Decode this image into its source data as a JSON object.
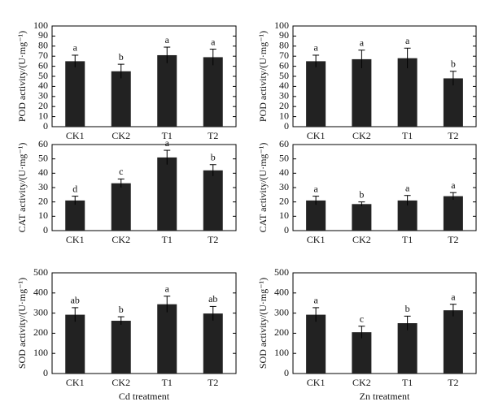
{
  "chart_data": [
    {
      "type": "bar",
      "ylabel": "POD activity/(U·mg⁻¹)",
      "categories": [
        "CK1",
        "CK2",
        "T1",
        "T2"
      ],
      "values": [
        65,
        55,
        71,
        69
      ],
      "errors": [
        6,
        7,
        8,
        8
      ],
      "labels": [
        "a",
        "b",
        "a",
        "a"
      ],
      "color": "#222222",
      "ylim": [
        0,
        100
      ],
      "yticks": [
        0,
        10,
        20,
        30,
        40,
        50,
        60,
        70,
        80,
        90,
        100
      ]
    },
    {
      "type": "bar",
      "ylabel": "POD activity/(U·mg⁻¹)",
      "categories": [
        "CK1",
        "CK2",
        "T1",
        "T2"
      ],
      "values": [
        65,
        67,
        68,
        48
      ],
      "errors": [
        6,
        9,
        10,
        7
      ],
      "labels": [
        "a",
        "a",
        "a",
        "b"
      ],
      "color": "#222222",
      "ylim": [
        0,
        100
      ],
      "yticks": [
        0,
        10,
        20,
        30,
        40,
        50,
        60,
        70,
        80,
        90,
        100
      ]
    },
    {
      "type": "bar",
      "ylabel": "CAT activity/(U·mg⁻¹)",
      "categories": [
        "CK1",
        "CK2",
        "T1",
        "T2"
      ],
      "values": [
        21,
        33,
        51,
        42
      ],
      "errors": [
        3,
        3,
        5,
        4
      ],
      "labels": [
        "d",
        "c",
        "a",
        "b"
      ],
      "color": "#222222",
      "ylim": [
        0,
        60
      ],
      "yticks": [
        0,
        10,
        20,
        30,
        40,
        50,
        60
      ]
    },
    {
      "type": "bar",
      "ylabel": "CAT activity/(U·mg⁻¹)",
      "categories": [
        "CK1",
        "CK2",
        "T1",
        "T2"
      ],
      "values": [
        21,
        18.5,
        21,
        24
      ],
      "errors": [
        3,
        1.5,
        3.5,
        2.5
      ],
      "labels": [
        "a",
        "b",
        "a",
        "a"
      ],
      "color": "#222222",
      "ylim": [
        0,
        60
      ],
      "yticks": [
        0,
        10,
        20,
        30,
        40,
        50,
        60
      ]
    },
    {
      "type": "bar",
      "ylabel": "SOD activity/(U·mg⁻¹)",
      "xlabel": "Cd treatment",
      "categories": [
        "CK1",
        "CK2",
        "T1",
        "T2"
      ],
      "values": [
        292,
        262,
        344,
        298
      ],
      "errors": [
        35,
        20,
        40,
        35
      ],
      "labels": [
        "ab",
        "b",
        "a",
        "ab"
      ],
      "color": "#222222",
      "ylim": [
        0,
        500
      ],
      "yticks": [
        0,
        100,
        200,
        300,
        400,
        500
      ]
    },
    {
      "type": "bar",
      "ylabel": "SOD activity/(U·mg⁻¹)",
      "xlabel": "Zn treatment",
      "categories": [
        "CK1",
        "CK2",
        "T1",
        "T2"
      ],
      "values": [
        292,
        205,
        250,
        314
      ],
      "errors": [
        35,
        30,
        35,
        30
      ],
      "labels": [
        "a",
        "c",
        "b",
        "a"
      ],
      "color": "#222222",
      "ylim": [
        0,
        500
      ],
      "yticks": [
        0,
        100,
        200,
        300,
        400,
        500
      ]
    }
  ]
}
